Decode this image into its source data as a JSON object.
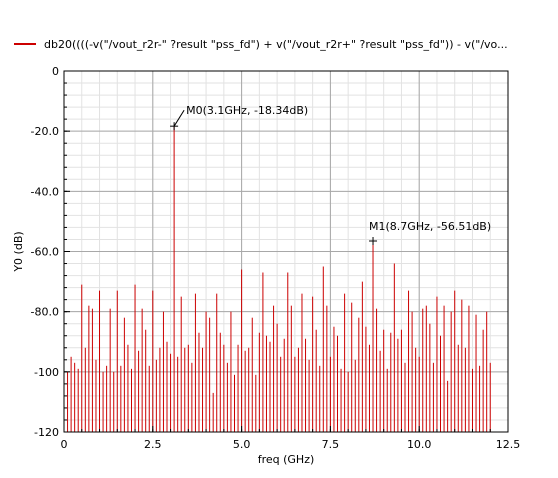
{
  "legend": {
    "label": "db20((((-v(\"/vout_r2r-\" ?result \"pss_fd\") + v(\"/vout_r2r+\" ?result \"pss_fd\")) - v(\"/vo..."
  },
  "chart_data": {
    "type": "bar",
    "title": "",
    "xlabel": "freq (GHz)",
    "ylabel": "Y0 (dB)",
    "xlim": [
      0,
      12.5
    ],
    "ylim": [
      -120,
      0
    ],
    "xticks": [
      0,
      2.5,
      5.0,
      7.5,
      10.0,
      12.5
    ],
    "xtick_labels": [
      "0",
      "2.5",
      "5.0",
      "7.5",
      "10.0",
      "12.5"
    ],
    "yticks": [
      0,
      -20,
      -40,
      -60,
      -80,
      -100,
      -120
    ],
    "ytick_labels": [
      "0",
      "-20.0",
      "-40.0",
      "-60.0",
      "-80.0",
      "-100",
      "-120"
    ],
    "grid": true,
    "line_color": "#cc0000",
    "series": [
      {
        "name": "db20((((-v(\"/vout_r2r-\" ?result \"pss_fd\") + v(\"/vout_r2r+\" ?result \"pss_fd\")) - v(\"/vo...",
        "x": [
          0.0,
          0.1,
          0.2,
          0.3,
          0.4,
          0.5,
          0.6,
          0.7,
          0.8,
          0.9,
          1.0,
          1.1,
          1.2,
          1.3,
          1.4,
          1.5,
          1.6,
          1.7,
          1.8,
          1.9,
          2.0,
          2.1,
          2.2,
          2.3,
          2.4,
          2.5,
          2.6,
          2.7,
          2.8,
          2.9,
          3.0,
          3.1,
          3.2,
          3.3,
          3.4,
          3.5,
          3.6,
          3.7,
          3.8,
          3.9,
          4.0,
          4.1,
          4.2,
          4.3,
          4.4,
          4.5,
          4.6,
          4.7,
          4.8,
          4.9,
          5.0,
          5.1,
          5.2,
          5.3,
          5.4,
          5.5,
          5.6,
          5.7,
          5.8,
          5.9,
          6.0,
          6.1,
          6.2,
          6.3,
          6.4,
          6.5,
          6.6,
          6.7,
          6.8,
          6.9,
          7.0,
          7.1,
          7.2,
          7.3,
          7.4,
          7.5,
          7.6,
          7.7,
          7.8,
          7.9,
          8.0,
          8.1,
          8.2,
          8.3,
          8.4,
          8.5,
          8.6,
          8.7,
          8.8,
          8.9,
          9.0,
          9.1,
          9.2,
          9.3,
          9.4,
          9.5,
          9.6,
          9.7,
          9.8,
          9.9,
          10.0,
          10.1,
          10.2,
          10.3,
          10.4,
          10.5,
          10.6,
          10.7,
          10.8,
          10.9,
          11.0,
          11.1,
          11.2,
          11.3,
          11.4,
          11.5,
          11.6,
          11.7,
          11.8,
          11.9,
          12.0
        ],
        "y": [
          -78,
          -100,
          -95,
          -97,
          -99,
          -71,
          -92,
          -78,
          -79,
          -96,
          -73,
          -100,
          -98,
          -79,
          -100,
          -73,
          -98,
          -82,
          -91,
          -99,
          -71,
          -93,
          -79,
          -86,
          -98,
          -73,
          -96,
          -92,
          -80,
          -90,
          -94,
          -18.34,
          -95,
          -75,
          -92,
          -91,
          -97,
          -74,
          -87,
          -92,
          -80,
          -82,
          -107,
          -74,
          -87,
          -91,
          -97,
          -80,
          -101,
          -91,
          -66,
          -93,
          -92,
          -82,
          -101,
          -87,
          -67,
          -88,
          -90,
          -78,
          -84,
          -95,
          -89,
          -67,
          -78,
          -95,
          -92,
          -74,
          -89,
          -96,
          -75,
          -86,
          -98,
          -65,
          -78,
          -95,
          -85,
          -88,
          -99,
          -74,
          -100,
          -77,
          -96,
          -82,
          -70,
          -85,
          -91,
          -56.51,
          -79,
          -93,
          -86,
          -99,
          -87,
          -64,
          -89,
          -86,
          -97,
          -73,
          -80,
          -92,
          -95,
          -79,
          -78,
          -84,
          -97,
          -75,
          -88,
          -78,
          -103,
          -80,
          -73,
          -91,
          -76,
          -92,
          -78,
          -99,
          -81,
          -98,
          -86,
          -80,
          -97
        ]
      }
    ],
    "annotations": [
      {
        "label": "M0(3.1GHz, -18.34dB)",
        "x": 3.1,
        "y": -18.34
      },
      {
        "label": "M1(8.7GHz, -56.51dB)",
        "x": 8.7,
        "y": -56.51
      }
    ]
  }
}
